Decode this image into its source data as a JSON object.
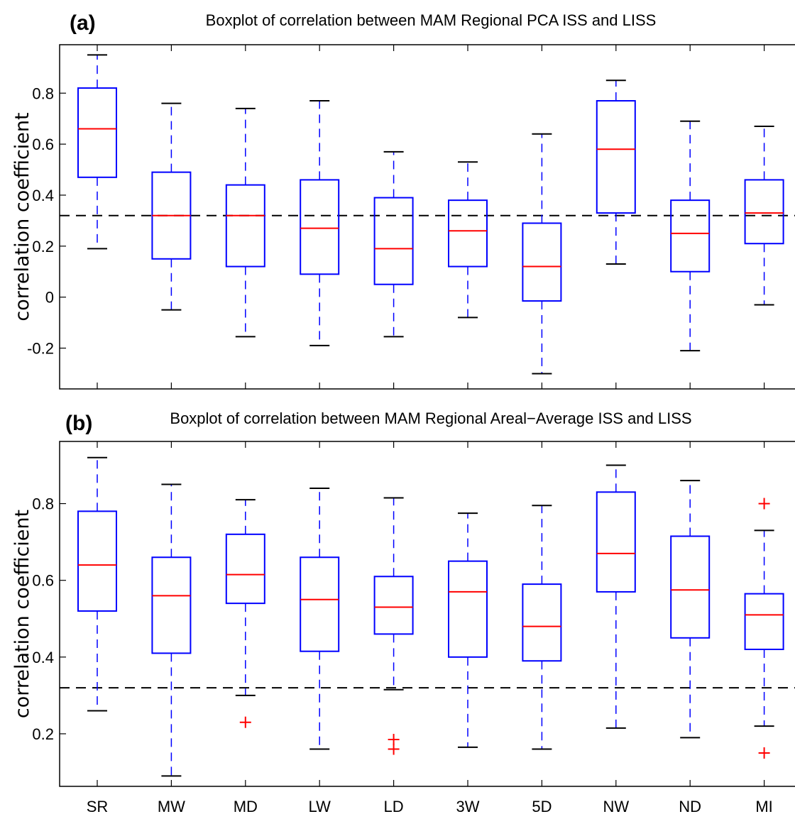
{
  "chart_data": [
    {
      "type": "box",
      "panel": "(a)",
      "title": "Boxplot of correlation between MAM Regional PCA ISS and LISS",
      "ylabel": "correlation coefficient",
      "xlabel": "",
      "ylim": [
        -0.36,
        0.99
      ],
      "yticks": [
        -0.2,
        0,
        0.2,
        0.4,
        0.6,
        0.8
      ],
      "ytick_labels": [
        "-0.2",
        "0",
        "0.2",
        "0.4",
        "0.6",
        "0.8"
      ],
      "reference_line": 0.32,
      "categories": [
        "SR",
        "MW",
        "MD",
        "LW",
        "LD",
        "3W",
        "5D",
        "NW",
        "ND",
        "MI"
      ],
      "boxes": [
        {
          "whisker_low": 0.19,
          "q1": 0.47,
          "median": 0.66,
          "q3": 0.82,
          "whisker_high": 0.95,
          "outliers": []
        },
        {
          "whisker_low": -0.05,
          "q1": 0.15,
          "median": 0.32,
          "q3": 0.49,
          "whisker_high": 0.76,
          "outliers": []
        },
        {
          "whisker_low": -0.155,
          "q1": 0.12,
          "median": 0.32,
          "q3": 0.44,
          "whisker_high": 0.74,
          "outliers": []
        },
        {
          "whisker_low": -0.19,
          "q1": 0.09,
          "median": 0.27,
          "q3": 0.46,
          "whisker_high": 0.77,
          "outliers": []
        },
        {
          "whisker_low": -0.155,
          "q1": 0.05,
          "median": 0.19,
          "q3": 0.39,
          "whisker_high": 0.57,
          "outliers": []
        },
        {
          "whisker_low": -0.08,
          "q1": 0.12,
          "median": 0.26,
          "q3": 0.38,
          "whisker_high": 0.53,
          "outliers": []
        },
        {
          "whisker_low": -0.3,
          "q1": -0.015,
          "median": 0.12,
          "q3": 0.29,
          "whisker_high": 0.64,
          "outliers": []
        },
        {
          "whisker_low": 0.13,
          "q1": 0.33,
          "median": 0.58,
          "q3": 0.77,
          "whisker_high": 0.85,
          "outliers": []
        },
        {
          "whisker_low": -0.21,
          "q1": 0.1,
          "median": 0.25,
          "q3": 0.38,
          "whisker_high": 0.69,
          "outliers": []
        },
        {
          "whisker_low": -0.03,
          "q1": 0.21,
          "median": 0.33,
          "q3": 0.46,
          "whisker_high": 0.67,
          "outliers": []
        }
      ]
    },
    {
      "type": "box",
      "panel": "(b)",
      "title": "Boxplot of correlation between MAM Regional Areal−Average ISS and LISS",
      "ylabel": "correlation coefficient",
      "xlabel": "",
      "ylim": [
        0.063,
        0.962
      ],
      "yticks": [
        0.2,
        0.4,
        0.6,
        0.8
      ],
      "ytick_labels": [
        "0.2",
        "0.4",
        "0.6",
        "0.8"
      ],
      "reference_line": 0.32,
      "categories": [
        "SR",
        "MW",
        "MD",
        "LW",
        "LD",
        "3W",
        "5D",
        "NW",
        "ND",
        "MI"
      ],
      "boxes": [
        {
          "whisker_low": 0.26,
          "q1": 0.52,
          "median": 0.64,
          "q3": 0.78,
          "whisker_high": 0.92,
          "outliers": []
        },
        {
          "whisker_low": 0.09,
          "q1": 0.41,
          "median": 0.56,
          "q3": 0.66,
          "whisker_high": 0.85,
          "outliers": []
        },
        {
          "whisker_low": 0.3,
          "q1": 0.54,
          "median": 0.615,
          "q3": 0.72,
          "whisker_high": 0.81,
          "outliers": [
            0.23
          ]
        },
        {
          "whisker_low": 0.16,
          "q1": 0.415,
          "median": 0.55,
          "q3": 0.66,
          "whisker_high": 0.84,
          "outliers": []
        },
        {
          "whisker_low": 0.315,
          "q1": 0.46,
          "median": 0.53,
          "q3": 0.61,
          "whisker_high": 0.815,
          "outliers": [
            0.185,
            0.16
          ]
        },
        {
          "whisker_low": 0.165,
          "q1": 0.4,
          "median": 0.57,
          "q3": 0.65,
          "whisker_high": 0.775,
          "outliers": []
        },
        {
          "whisker_low": 0.16,
          "q1": 0.39,
          "median": 0.48,
          "q3": 0.59,
          "whisker_high": 0.795,
          "outliers": []
        },
        {
          "whisker_low": 0.215,
          "q1": 0.57,
          "median": 0.67,
          "q3": 0.83,
          "whisker_high": 0.9,
          "outliers": []
        },
        {
          "whisker_low": 0.19,
          "q1": 0.45,
          "median": 0.575,
          "q3": 0.715,
          "whisker_high": 0.86,
          "outliers": []
        },
        {
          "whisker_low": 0.22,
          "q1": 0.42,
          "median": 0.51,
          "q3": 0.565,
          "whisker_high": 0.73,
          "outliers": [
            0.8,
            0.15
          ]
        }
      ]
    }
  ],
  "colors": {
    "box": "#0000ff",
    "median": "#ff0000",
    "outlier": "#ff0000",
    "whisker_cap": "#000000",
    "reference_line": "#000000",
    "axes": "#000000"
  }
}
